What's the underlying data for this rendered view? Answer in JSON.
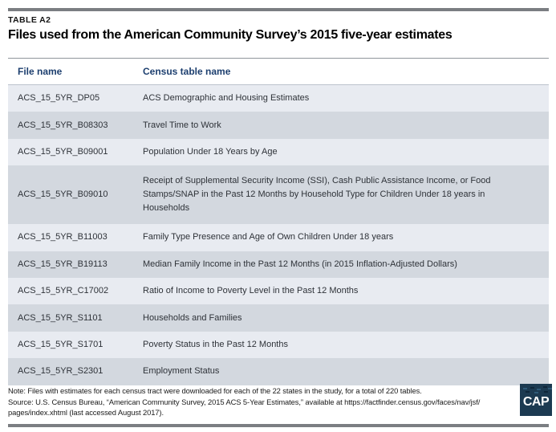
{
  "table_label": "TABLE A2",
  "title": "Files used from the American Community Survey’s 2015 five-year estimates",
  "table": {
    "columns": [
      "File name",
      "Census table name"
    ],
    "rows": [
      {
        "file_name": "ACS_15_5YR_DP05",
        "census_table_name": "ACS Demographic and Housing Estimates"
      },
      {
        "file_name": "ACS_15_5YR_B08303",
        "census_table_name": "Travel Time to Work"
      },
      {
        "file_name": "ACS_15_5YR_B09001",
        "census_table_name": "Population Under 18 Years by Age"
      },
      {
        "file_name": "ACS_15_5YR_B09010",
        "census_table_name": "Receipt of Supplemental Security Income (SSI), Cash Public Assistance Income, or Food Stamps/SNAP in the Past 12 Months by Household Type for Children Under 18 years in Households"
      },
      {
        "file_name": "ACS_15_5YR_B11003",
        "census_table_name": "Family Type Presence and Age of Own Children Under 18 years"
      },
      {
        "file_name": "ACS_15_5YR_B19113",
        "census_table_name": "Median Family Income in the Past 12 Months (in 2015 Inflation-Adjusted Dollars)"
      },
      {
        "file_name": "ACS_15_5YR_C17002",
        "census_table_name": "Ratio of Income to Poverty Level in the Past 12 Months"
      },
      {
        "file_name": "ACS_15_5YR_S1101",
        "census_table_name": "Households and Families"
      },
      {
        "file_name": "ACS_15_5YR_S1701",
        "census_table_name": "Poverty Status in the Past 12 Months"
      },
      {
        "file_name": "ACS_15_5YR_S2301",
        "census_table_name": "Employment Status"
      }
    ]
  },
  "footer": {
    "note": "Note: Files with estimates for each census tract were downloaded for each of the 22 states in the study, for a total of 220 tables.",
    "source_lines": [
      "Source: U.S. Census Bureau, “American Community Survey, 2015 ACS 5-Year Estimates,” available at https://factfinder.census.gov/faces/nav/jsf/",
      "pages/index.xhtml (last accessed August 2017)."
    ],
    "logo_text": "CAP"
  },
  "colors": {
    "row_light": "#e8ebf1",
    "row_dark": "#d3d8df",
    "header_text": "#1d3f6f",
    "rule_gray": "#7b7e82",
    "logo_background": "#1c3a51"
  }
}
